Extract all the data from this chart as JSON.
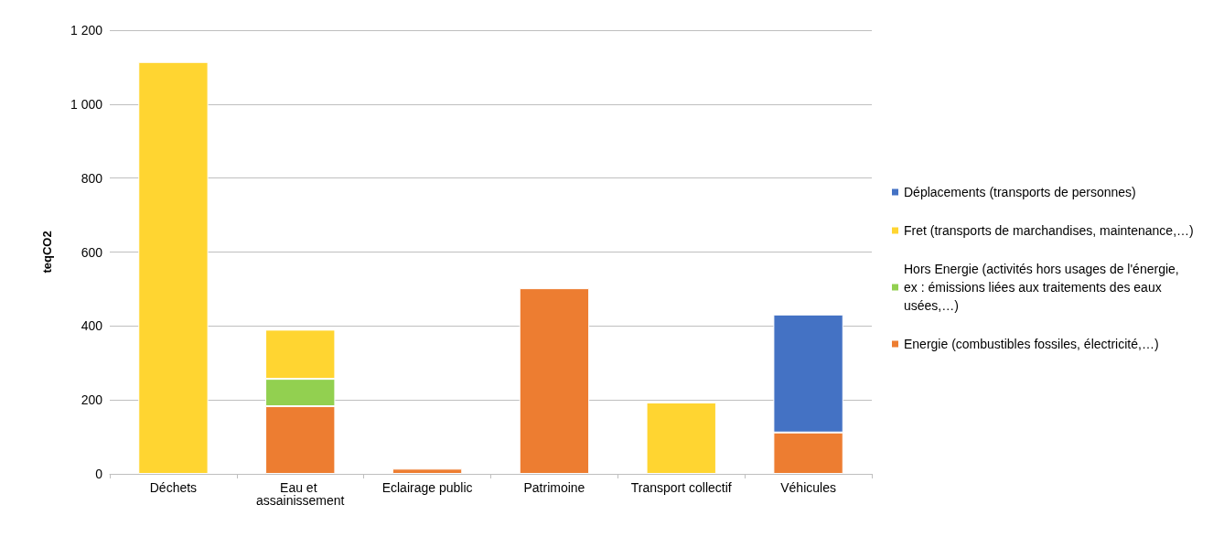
{
  "chart_data": {
    "type": "bar",
    "stacked": true,
    "ylabel": "teqCO2",
    "categories": [
      "Déchets",
      "Eau et assainissement",
      "Eclairage public",
      "Patrimoine",
      "Transport collectif",
      "Véhicules"
    ],
    "series": [
      {
        "name": "Energie (combustibles fossiles, électricité,…)",
        "color": "#ed7d31",
        "values": [
          null,
          183,
          14,
          502,
          null,
          112
        ]
      },
      {
        "name": "Hors Energie (activités hors usages de l'énergie, ex : émissions liées aux traitements des eaux usées,…)",
        "color": "#92d050",
        "values": [
          null,
          74,
          null,
          null,
          null,
          null
        ]
      },
      {
        "name": "Fret (transports de marchandises, maintenance,…)",
        "color": "#ffd531",
        "values": [
          1114,
          133,
          null,
          null,
          193,
          null
        ]
      },
      {
        "name": "Déplacements (transports de personnes)",
        "color": "#4472c4",
        "values": [
          null,
          null,
          null,
          null,
          null,
          319
        ]
      }
    ],
    "ylim": [
      0,
      1200
    ],
    "yticks": [
      {
        "value": 0,
        "label": "0"
      },
      {
        "value": 200,
        "label": "200"
      },
      {
        "value": 400,
        "label": "400"
      },
      {
        "value": 600,
        "label": "600"
      },
      {
        "value": 800,
        "label": "800"
      },
      {
        "value": 1000,
        "label": "1 000"
      },
      {
        "value": 1200,
        "label": "1 200"
      }
    ],
    "grid": "y",
    "legend": "right"
  }
}
